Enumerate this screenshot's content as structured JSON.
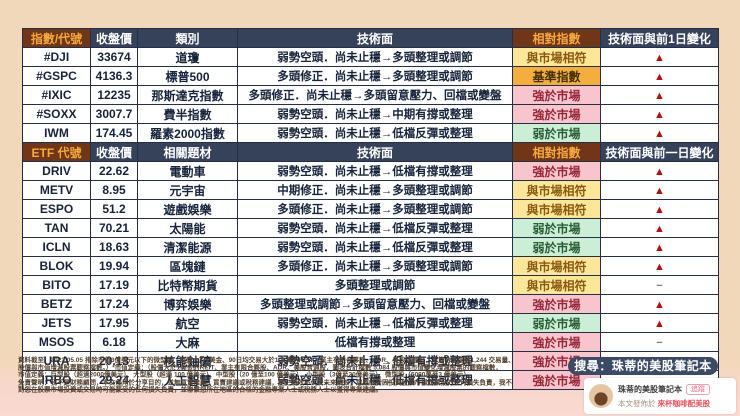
{
  "palette": {
    "page_background": "#f2d8bb",
    "bottom_strip": "#f9d9d2",
    "header_navy": "#36415a",
    "header_brown": "#6f3617",
    "header_brown_text": "#f5a93e",
    "cell_border": "#242e44",
    "relative_yellow": "#fbe69a",
    "relative_gold": "#f3ae3d",
    "relative_pink": "#f8c5cd",
    "relative_green": "#cdeed6",
    "triangle_red": "#b60d0d",
    "pill_navy": "#3c4a66",
    "channel_pink": "#e8545e"
  },
  "icons": {
    "up_triangle": "▲",
    "flat_dash": "−"
  },
  "indices_table": {
    "headers": {
      "code": "指數/代號",
      "close": "收盤價",
      "category": "類別",
      "technical": "技術面",
      "relative": "相對指數",
      "change": "技術面與前1日變化"
    },
    "rows": [
      {
        "code": "#DJI",
        "close": "33674",
        "category": "道瓊",
        "technical": "弱勢空頭．尚未止穩→多頭整理或調節",
        "relative": "與市場相符",
        "relative_style": "yellow",
        "change": "up"
      },
      {
        "code": "#GSPC",
        "close": "4136.3",
        "category": "標普500",
        "technical": "多頭修正．尚未止穩→多頭整理或調節",
        "relative": "基準指數",
        "relative_style": "gold",
        "change": "up"
      },
      {
        "code": "#IXIC",
        "close": "12235",
        "category": "那斯達克指數",
        "technical": "多頭修正．尚未止穩→多頭留意壓力、回檔或變盤",
        "relative": "強於市場",
        "relative_style": "pink",
        "change": "up"
      },
      {
        "code": "#SOXX",
        "close": "3007.7",
        "category": "費半指數",
        "technical": "弱勢空頭．尚未止穩→中期有撐或整理",
        "relative": "強於市場",
        "relative_style": "pink",
        "change": "up"
      },
      {
        "code": "IWM",
        "close": "174.45",
        "category": "羅素2000指數",
        "technical": "弱勢空頭．尚未止穩→低檔反彈或整理",
        "relative": "弱於市場",
        "relative_style": "green",
        "change": "up"
      }
    ]
  },
  "etf_table": {
    "headers": {
      "code": "ETF 代號",
      "close": "收盤價",
      "category": "相關題材",
      "technical": "技術面",
      "relative": "相對指數",
      "change": "技術面與前一日變化"
    },
    "rows": [
      {
        "code": "DRIV",
        "close": "22.62",
        "category": "電動車",
        "technical": "弱勢空頭．尚未止穩→低檔有撐或整理",
        "relative": "強於市場",
        "relative_style": "pink",
        "change": "up"
      },
      {
        "code": "METV",
        "close": "8.95",
        "category": "元宇宙",
        "technical": "中期修正．尚未止穩→多頭整理或調節",
        "relative": "與市場相符",
        "relative_style": "yellow",
        "change": "up"
      },
      {
        "code": "ESPO",
        "close": "51.2",
        "category": "遊戲娛樂",
        "technical": "多頭修正．尚未止穩→多頭整理或調節",
        "relative": "與市場相符",
        "relative_style": "yellow",
        "change": "up"
      },
      {
        "code": "TAN",
        "close": "70.21",
        "category": "太陽能",
        "technical": "弱勢空頭．尚未止穩→低檔反彈或整理",
        "relative": "弱於市場",
        "relative_style": "green",
        "change": "up"
      },
      {
        "code": "ICLN",
        "close": "18.63",
        "category": "清潔能源",
        "technical": "弱勢空頭．尚未止穩→低檔反彈或整理",
        "relative": "弱於市場",
        "relative_style": "green",
        "change": "up"
      },
      {
        "code": "BLOK",
        "close": "19.94",
        "category": "區塊鏈",
        "technical": "多頭修正．尚未止穩→多頭整理或調節",
        "relative": "與市場相符",
        "relative_style": "yellow",
        "change": "up"
      },
      {
        "code": "BITO",
        "close": "17.19",
        "category": "比特幣期貨",
        "technical": "多頭整理或調節",
        "relative": "與市場相符",
        "relative_style": "yellow",
        "change": "flat"
      },
      {
        "code": "BETZ",
        "close": "17.24",
        "category": "博弈娛樂",
        "technical": "多頭整理或調節→多頭留意壓力、回檔或變盤",
        "relative": "強於市場",
        "relative_style": "pink",
        "change": "up"
      },
      {
        "code": "JETS",
        "close": "17.95",
        "category": "航空",
        "technical": "弱勢空頭．尚未止穩→低檔反彈或整理",
        "relative": "弱於市場",
        "relative_style": "green",
        "change": "up"
      },
      {
        "code": "MSOS",
        "close": "6.18",
        "category": "大麻",
        "technical": "低檔有撐或整理",
        "relative": "強於市場",
        "relative_style": "pink",
        "change": "flat"
      },
      {
        "code": "URA",
        "close": "20.13",
        "category": "核能鈾礦",
        "technical": "弱勢空頭．尚未止穩→低檔有撐或整理",
        "relative": "強於市場",
        "relative_style": "pink",
        "change": "up"
      },
      {
        "code": "IRBO",
        "close": "29.24",
        "category": "人工智慧",
        "technical": "弱勢空頭．尚未止穩→低檔有撐或整理",
        "relative": "強於市場",
        "relative_style": "pink",
        "change": "up"
      }
    ]
  },
  "footer": {
    "lines": [
      "資料截至：2023.05.05 排除市值3億美元以下的微型股、股價大於1美金、90日均交易大於100萬的REIT、業主有限合夥股、ADR、美股普通股，本篇合計檔數1,244 交易量、",
      "股價與市值增減股票觀察檔數。）*市值定義：（股價大於1美金的REIT、業主有限合夥股、ADR、美股普通股，圖表合計檔數 5,084 股價與市值變化增減股票的觀察檔數，",
      "市值定義：巨型股（超過2000億美元）、大型股（超過 100 億美元）、中型股（20 億至100 億美元）、小型股（3億至20億美元）、微型股（5000萬至3 億美元）、",
      "免責聲明：我不是財務顧問，本文僅用於分享目的，並無買賣推薦、買賣建議或稅務建議，歷史績效不代表未來績效，您應該對因投資股票市場而蒙受的任何損失負責，我不",
      "對您在股票市場投資或交易時可能蒙受的任何損失負責，並聯繫您所在地區的合格的金融專業人士或稅務人士以獲得專業建議。"
    ]
  },
  "promo": {
    "search_pill": "搜尋：珠蒂的美股筆記本",
    "card_title": "珠蒂的美股筆記本",
    "follow_button": "追蹤",
    "published_prefix": "本文發佈於",
    "published_channel": "來杯咖啡配美股"
  }
}
